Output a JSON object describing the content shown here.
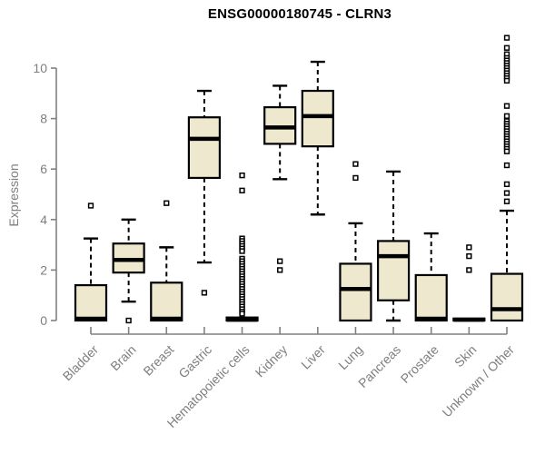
{
  "chart_data": {
    "type": "boxplot",
    "title": "ENSG00000180745 - CLRN3",
    "xlabel": "",
    "ylabel": "Expression",
    "ylim": [
      0,
      10
    ],
    "yticks": [
      0,
      2,
      4,
      6,
      8,
      10
    ],
    "grid": false,
    "legend_position": "none",
    "categories": [
      "Bladder",
      "Brain",
      "Breast",
      "Gastric",
      "Hematopoietic cells",
      "Kidney",
      "Liver",
      "Lung",
      "Pancreas",
      "Prostate",
      "Skin",
      "Unknown / Other"
    ],
    "series": [
      {
        "name": "Bladder",
        "whisker_low": 0,
        "q1": 0,
        "median": 0.07,
        "q3": 1.4,
        "whisker_high": 3.25,
        "outliers": [
          4.55
        ]
      },
      {
        "name": "Brain",
        "whisker_low": 0.75,
        "q1": 1.9,
        "median": 2.4,
        "q3": 3.05,
        "whisker_high": 4.0,
        "outliers": [
          0.0
        ]
      },
      {
        "name": "Breast",
        "whisker_low": 0,
        "q1": 0,
        "median": 0.07,
        "q3": 1.5,
        "whisker_high": 2.9,
        "outliers": [
          4.65
        ]
      },
      {
        "name": "Gastric",
        "whisker_low": 2.3,
        "q1": 5.65,
        "median": 7.2,
        "q3": 8.05,
        "whisker_high": 9.1,
        "outliers": [
          1.1
        ]
      },
      {
        "name": "Hematopoietic cells",
        "whisker_low": 0,
        "q1": 0,
        "median": 0.03,
        "q3": 0.12,
        "whisker_high": 0.2,
        "outliers": [
          5.75,
          5.15,
          3.25,
          3.15,
          3.05,
          2.95,
          2.85,
          2.75,
          2.45,
          2.35,
          2.25,
          2.15,
          2.05,
          1.95,
          1.85,
          1.75,
          1.65,
          1.55,
          1.45,
          1.35,
          1.25,
          1.15,
          1.05,
          0.95,
          0.85,
          0.75,
          0.65,
          0.55,
          0.45,
          0.35,
          0.27
        ]
      },
      {
        "name": "Kidney",
        "whisker_low": 5.6,
        "q1": 7.0,
        "median": 7.65,
        "q3": 8.45,
        "whisker_high": 9.3,
        "outliers": [
          2.35,
          2.0
        ]
      },
      {
        "name": "Liver",
        "whisker_low": 4.2,
        "q1": 6.9,
        "median": 8.1,
        "q3": 9.1,
        "whisker_high": 10.25,
        "outliers": []
      },
      {
        "name": "Lung",
        "whisker_low": 0,
        "q1": 0,
        "median": 1.25,
        "q3": 2.25,
        "whisker_high": 3.85,
        "outliers": [
          6.2,
          5.65
        ]
      },
      {
        "name": "Pancreas",
        "whisker_low": 0,
        "q1": 0.8,
        "median": 2.55,
        "q3": 3.15,
        "whisker_high": 5.9,
        "outliers": []
      },
      {
        "name": "Prostate",
        "whisker_low": 0,
        "q1": 0,
        "median": 0.07,
        "q3": 1.8,
        "whisker_high": 3.45,
        "outliers": []
      },
      {
        "name": "Skin",
        "whisker_low": 0,
        "q1": 0,
        "median": 0.03,
        "q3": 0.08,
        "whisker_high": 0.12,
        "outliers": [
          2.9,
          2.55,
          2.0
        ]
      },
      {
        "name": "Unknown / Other",
        "whisker_low": 0,
        "q1": 0,
        "median": 0.45,
        "q3": 1.85,
        "whisker_high": 4.35,
        "outliers": [
          11.2,
          10.8,
          10.55,
          10.4,
          10.3,
          10.2,
          10.1,
          10.0,
          9.9,
          9.8,
          9.7,
          9.6,
          9.5,
          8.5,
          8.1,
          7.9,
          7.8,
          7.7,
          7.6,
          7.5,
          7.4,
          7.3,
          7.2,
          7.1,
          7.0,
          6.9,
          6.8,
          6.7,
          6.15,
          5.4,
          5.05,
          4.72
        ]
      }
    ],
    "style": {
      "box_fill": "#EDE8CE",
      "box_stroke": "#000000",
      "median_color": "#000000",
      "whisker_color": "#000000",
      "outlier_shape": "open-square",
      "axis_color": "#808080",
      "tick_label_color": "#7e7e7e",
      "title_color": "#000000",
      "background": "#ffffff"
    }
  }
}
